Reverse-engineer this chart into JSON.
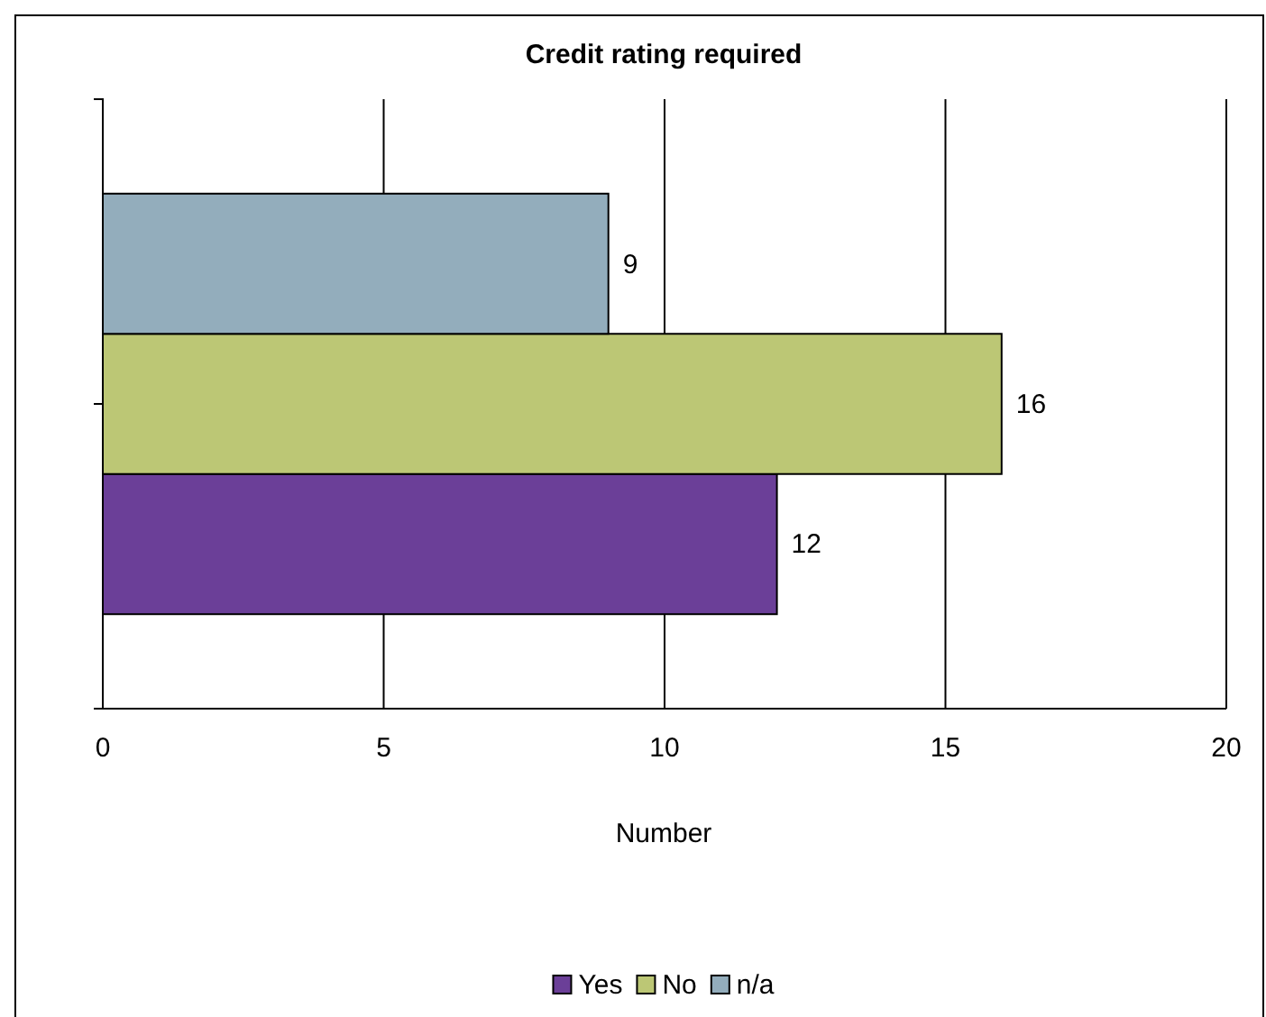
{
  "chart_data": {
    "type": "bar",
    "title": "Credit rating required",
    "xlabel": "Number",
    "orientation": "horizontal",
    "categories": [
      null
    ],
    "series": [
      {
        "name": "Yes",
        "color": "#6b3f98",
        "values": [
          12
        ]
      },
      {
        "name": "No",
        "color": "#bcc775",
        "values": [
          16
        ]
      },
      {
        "name": "n/a",
        "color": "#93adbc",
        "values": [
          9
        ]
      }
    ],
    "xlim": [
      0,
      20
    ],
    "xticks": [
      0,
      5,
      10,
      15,
      20
    ],
    "grid": "x",
    "legend": "bottom",
    "data_labels": true
  }
}
